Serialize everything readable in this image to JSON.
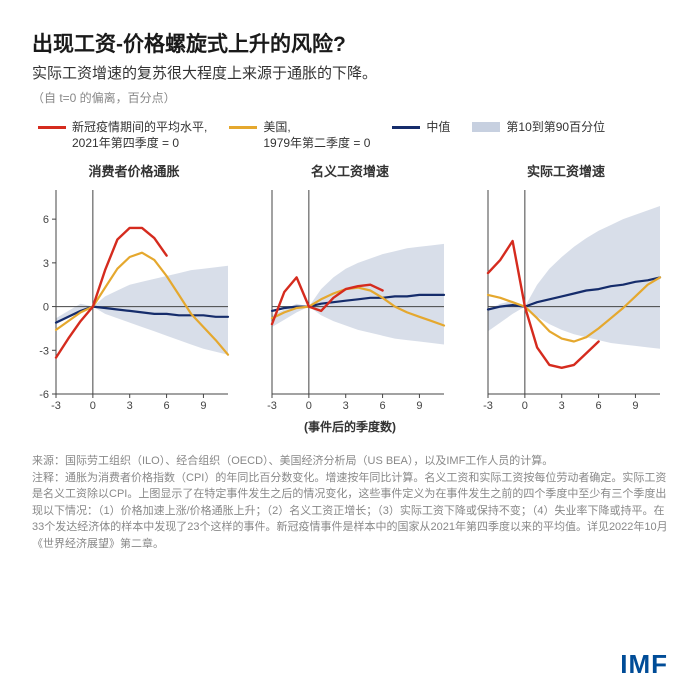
{
  "meta": {
    "title": "出现工资-价格螺旋式上升的风险?",
    "subtitle": "实际工资增速的复苏很大程度上来源于通胀的下降。",
    "units": "（自 t=0 的偏离，百分点）",
    "xaxis_label": "(事件后的季度数)",
    "logo_text": "IMF",
    "logo_color": "#004c97"
  },
  "colors": {
    "covid": "#d52b1e",
    "us": "#e5a82e",
    "median": "#152c6b",
    "band": "#c7d0e0",
    "axis": "#444444",
    "tick_text": "#444444"
  },
  "legend": {
    "covid": {
      "line1": "新冠疫情期间的平均水平,",
      "line2": "2021年第四季度 = 0"
    },
    "us": {
      "line1": "美国,",
      "line2": "1979年第二季度 = 0"
    },
    "median": {
      "line1": "中值"
    },
    "band": {
      "line1": "第10到第90百分位"
    }
  },
  "axes": {
    "x": {
      "min": -3,
      "max": 11,
      "ticks": [
        -3,
        0,
        3,
        6,
        9
      ]
    },
    "y": {
      "min": -6,
      "max": 8,
      "ticks": [
        -6,
        -3,
        0,
        3,
        6
      ]
    },
    "tick_fontsize": 11
  },
  "panels": [
    {
      "title": "消费者价格通胀",
      "show_yticks": true,
      "band_top": [
        -0.8,
        -0.3,
        0.2,
        0,
        0.7,
        1.1,
        1.5,
        1.7,
        1.9,
        2.1,
        2.3,
        2.5,
        2.6,
        2.7,
        2.8
      ],
      "band_bottom": [
        -1.2,
        -0.8,
        -0.4,
        0,
        -0.5,
        -0.8,
        -1.1,
        -1.4,
        -1.7,
        -2.0,
        -2.3,
        -2.6,
        -2.9,
        -3.1,
        -3.3
      ],
      "median": [
        -1.1,
        -0.7,
        -0.3,
        0,
        -0.1,
        -0.2,
        -0.3,
        -0.4,
        -0.5,
        -0.5,
        -0.6,
        -0.6,
        -0.6,
        -0.7,
        -0.7
      ],
      "covid": [
        -3.5,
        -2.2,
        -1.0,
        0,
        2.5,
        4.6,
        5.4,
        5.4,
        4.7,
        3.5,
        null,
        null,
        null,
        null,
        null
      ],
      "us": [
        -1.6,
        -1.0,
        -0.4,
        0,
        1.3,
        2.6,
        3.4,
        3.7,
        3.2,
        2.1,
        0.8,
        -0.5,
        -1.4,
        -2.3,
        -3.3
      ]
    },
    {
      "title": "名义工资增速",
      "show_yticks": false,
      "band_top": [
        -0.6,
        -0.2,
        0.2,
        0,
        1.2,
        2.0,
        2.6,
        3.0,
        3.3,
        3.6,
        3.8,
        4.0,
        4.1,
        4.2,
        4.3
      ],
      "band_bottom": [
        -1.4,
        -0.9,
        -0.4,
        0,
        -0.6,
        -1.0,
        -1.3,
        -1.6,
        -1.8,
        -2.0,
        -2.2,
        -2.3,
        -2.4,
        -2.5,
        -2.6
      ],
      "median": [
        -0.3,
        -0.1,
        0.0,
        0,
        0.2,
        0.3,
        0.4,
        0.5,
        0.6,
        0.6,
        0.7,
        0.7,
        0.8,
        0.8,
        0.8
      ],
      "covid": [
        -1.2,
        1.0,
        2.0,
        0,
        -0.3,
        0.6,
        1.2,
        1.4,
        1.5,
        1.1,
        null,
        null,
        null,
        null,
        null
      ],
      "us": [
        -0.8,
        -0.4,
        -0.1,
        0,
        0.5,
        0.9,
        1.2,
        1.3,
        1.1,
        0.6,
        0.0,
        -0.4,
        -0.7,
        -1.0,
        -1.3
      ]
    },
    {
      "title": "实际工资增速",
      "show_yticks": false,
      "band_top": [
        -0.2,
        0.2,
        0.4,
        0,
        1.5,
        2.6,
        3.4,
        4.1,
        4.7,
        5.2,
        5.6,
        6.0,
        6.3,
        6.6,
        6.9
      ],
      "band_bottom": [
        -1.7,
        -1.1,
        -0.5,
        0,
        -0.7,
        -1.2,
        -1.6,
        -1.9,
        -2.1,
        -2.3,
        -2.5,
        -2.6,
        -2.7,
        -2.8,
        -2.9
      ],
      "median": [
        -0.2,
        0.0,
        0.1,
        0,
        0.3,
        0.5,
        0.7,
        0.9,
        1.1,
        1.2,
        1.4,
        1.5,
        1.7,
        1.8,
        2.0
      ],
      "covid": [
        2.3,
        3.2,
        4.5,
        0,
        -2.8,
        -4.0,
        -4.2,
        -4.0,
        -3.2,
        -2.4,
        null,
        null,
        null,
        null,
        null
      ],
      "us": [
        0.8,
        0.6,
        0.3,
        0,
        -0.8,
        -1.7,
        -2.2,
        -2.4,
        -2.1,
        -1.5,
        -0.8,
        -0.1,
        0.7,
        1.5,
        2.0
      ]
    }
  ],
  "sources": {
    "l1": "来源：国际劳工组织（ILO）、经合组织（OECD）、美国经济分析局（US BEA），以及IMF工作人员的计算。",
    "l2": "注释：通胀为消费者价格指数（CPI）的年同比百分数变化。增速按年同比计算。名义工资和实际工资按每位劳动者确定。实际工资是名义工资除以CPI。上图显示了在特定事件发生之后的情况变化，这些事件定义为在事件发生之前的四个季度中至少有三个季度出现以下情况：（1）价格加速上涨/价格通胀上升；（2）名义工资正增长；（3）实际工资下降或保持不变；（4）失业率下降或持平。在33个发达经济体的样本中发现了23个这样的事件。新冠疫情事件是样本中的国家从2021年第四季度以来的平均值。详见2022年10月《世界经济展望》第二章。"
  }
}
